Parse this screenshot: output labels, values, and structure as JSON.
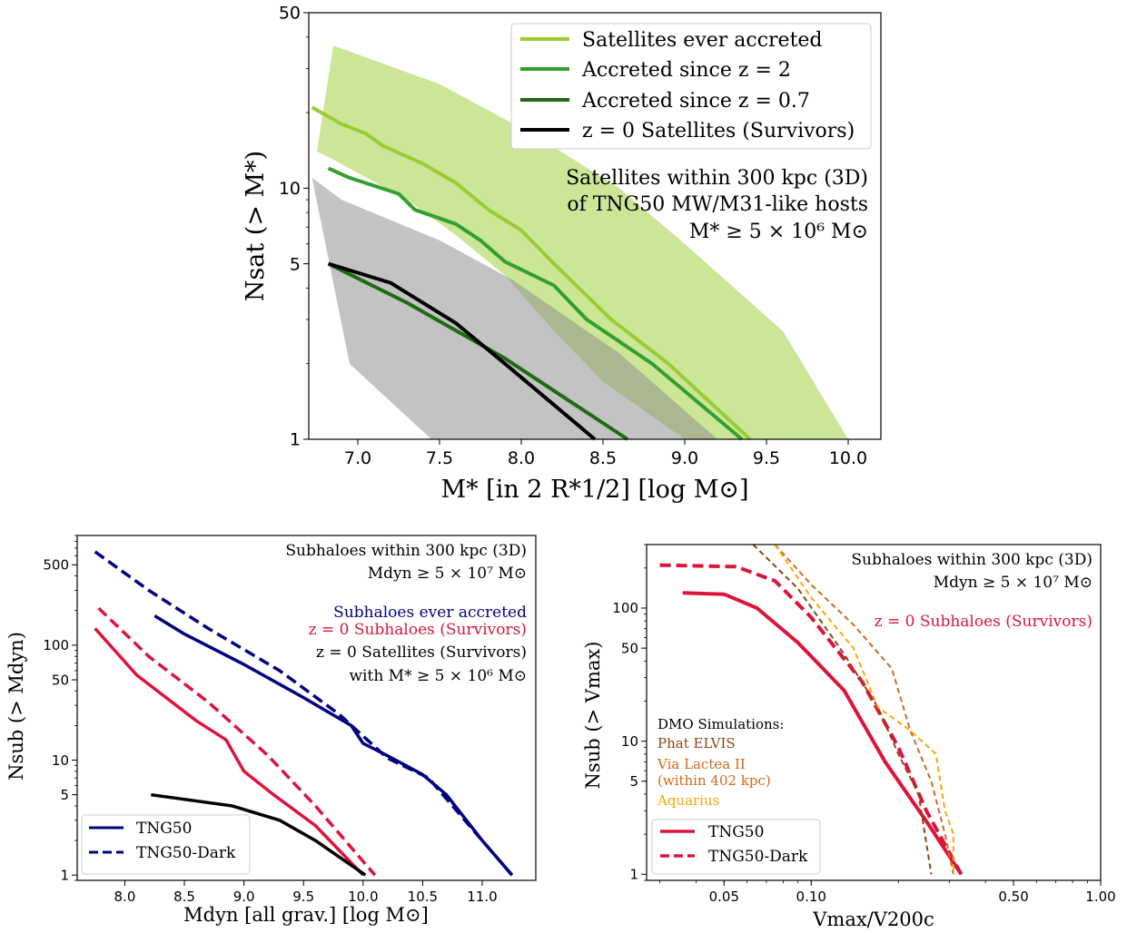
{
  "chart_data": [
    {
      "id": "top",
      "type": "line",
      "xscale": "linear",
      "yscale": "log",
      "xlim": [
        6.7,
        10.2
      ],
      "ylim": [
        1,
        50
      ],
      "xticks": [
        7.0,
        7.5,
        8.0,
        8.5,
        9.0,
        9.5,
        10.0
      ],
      "xtick_labels": [
        "7.0",
        "7.5",
        "8.0",
        "8.5",
        "9.0",
        "9.5",
        "10.0"
      ],
      "yticks": [
        1,
        5,
        10,
        50
      ],
      "ytick_labels": [
        "1",
        "5",
        "10",
        "50"
      ],
      "xlabel": "M* [in 2 R*1/2] [log M⊙]",
      "ylabel": "Nsat (> M*)",
      "legend_position": "top-right",
      "annotation": [
        "Satellites within 300 kpc (3D)",
        "of TNG50 MW/M31-like hosts",
        "M* ≥ 5 × 10⁶ M⊙"
      ],
      "bands": [
        {
          "color": "#9acd32",
          "opacity": 0.5,
          "upper": [
            [
              6.75,
              14
            ],
            [
              6.85,
              37
            ],
            [
              7.5,
              26
            ],
            [
              8.1,
              16
            ],
            [
              8.6,
              10
            ],
            [
              9.0,
              6
            ],
            [
              9.6,
              2.7
            ],
            [
              10.0,
              1
            ]
          ],
          "lower": [
            [
              9.55,
              1
            ],
            [
              9.0,
              1
            ],
            [
              8.5,
              1.7
            ],
            [
              8.2,
              2.7
            ],
            [
              7.9,
              4.5
            ],
            [
              7.6,
              6.5
            ],
            [
              7.3,
              9
            ],
            [
              6.85,
              13
            ],
            [
              6.75,
              14
            ]
          ]
        },
        {
          "color": "#888888",
          "opacity": 0.5,
          "upper": [
            [
              6.72,
              11
            ],
            [
              6.9,
              9
            ],
            [
              7.5,
              6.2
            ],
            [
              7.95,
              4.3
            ],
            [
              8.6,
              2.2
            ],
            [
              9.2,
              1
            ]
          ],
          "lower": [
            [
              7.45,
              1
            ],
            [
              6.95,
              2
            ],
            [
              6.72,
              11
            ]
          ]
        }
      ],
      "series": [
        {
          "name": "Satellites ever accreted",
          "color": "#9acd32",
          "width": 4,
          "points": [
            [
              6.72,
              21
            ],
            [
              6.9,
              18
            ],
            [
              7.05,
              16.5
            ],
            [
              7.15,
              14.8
            ],
            [
              7.4,
              12.5
            ],
            [
              7.6,
              10.5
            ],
            [
              7.8,
              8.2
            ],
            [
              8.0,
              6.8
            ],
            [
              8.2,
              5.0
            ],
            [
              8.55,
              3.0
            ],
            [
              8.9,
              2.0
            ],
            [
              9.4,
              1
            ]
          ]
        },
        {
          "name": "Accreted since z = 2",
          "color": "#33a02c",
          "width": 4,
          "points": [
            [
              6.82,
              12
            ],
            [
              6.95,
              11
            ],
            [
              7.25,
              9.5
            ],
            [
              7.35,
              8.2
            ],
            [
              7.6,
              7.2
            ],
            [
              7.75,
              6.2
            ],
            [
              7.9,
              5.1
            ],
            [
              8.2,
              4.1
            ],
            [
              8.4,
              3.0
            ],
            [
              8.8,
              2.0
            ],
            [
              9.35,
              1
            ]
          ]
        },
        {
          "name": "Accreted since z = 0.7",
          "color": "#1f6b14",
          "width": 4,
          "points": [
            [
              6.82,
              5.0
            ],
            [
              7.3,
              3.5
            ],
            [
              7.9,
              2.1
            ],
            [
              8.65,
              1
            ]
          ]
        },
        {
          "name": "z = 0 Satellites (Survivors)",
          "color": "#000000",
          "width": 4,
          "points": [
            [
              6.82,
              5.0
            ],
            [
              7.2,
              4.2
            ],
            [
              7.6,
              2.9
            ],
            [
              7.9,
              2.0
            ],
            [
              8.45,
              1
            ]
          ]
        }
      ]
    },
    {
      "id": "bottom-left",
      "type": "line",
      "xscale": "linear",
      "yscale": "log",
      "xlim": [
        7.6,
        11.45
      ],
      "ylim": [
        0.9,
        900
      ],
      "xticks": [
        8.0,
        8.5,
        9.0,
        9.5,
        10.0,
        10.5,
        11.0
      ],
      "xtick_labels": [
        "8.0",
        "8.5",
        "9.0",
        "9.5",
        "10.0",
        "10.5",
        "11.0"
      ],
      "yticks": [
        1,
        5,
        10,
        50,
        100,
        500
      ],
      "ytick_labels": [
        "1",
        "5",
        "10",
        "50",
        "100",
        "500"
      ],
      "xlabel": "Mdyn [all grav.] [log M⊙]",
      "ylabel": "Nsub (> Mdyn)",
      "legend_position": "bottom-left",
      "legend": [
        {
          "name": "TNG50",
          "style": "solid"
        },
        {
          "name": "TNG50-Dark",
          "style": "dashed"
        }
      ],
      "annotation": [
        "Subhaloes within 300 kpc (3D)",
        "Mdyn ≥ 5 × 10⁷ M⊙"
      ],
      "colored_labels": [
        {
          "text": "Subhaloes ever accreted",
          "color": "#00007f"
        },
        {
          "text": "z = 0 Subhaloes (Survivors)",
          "color": "#dc143c"
        },
        {
          "text": "z = 0 Satellites (Survivors)",
          "color": "#000000"
        },
        {
          "text": "with M* ≥ 5 × 10⁶ M⊙",
          "color": "#000000"
        }
      ],
      "series": [
        {
          "name": "Subhaloes ever accreted (TNG50-Dark)",
          "color": "#00007f",
          "dash": true,
          "points": [
            [
              7.75,
              650
            ],
            [
              8.2,
              300
            ],
            [
              8.7,
              140
            ],
            [
              9.3,
              60
            ],
            [
              9.8,
              25
            ],
            [
              10.2,
              10.5
            ],
            [
              10.55,
              7
            ],
            [
              11.0,
              2
            ],
            [
              11.25,
              1
            ]
          ]
        },
        {
          "name": "Subhaloes ever accreted (TNG50)",
          "color": "#00007f",
          "dash": false,
          "points": [
            [
              8.25,
              180
            ],
            [
              8.5,
              125
            ],
            [
              9.0,
              68
            ],
            [
              9.5,
              35
            ],
            [
              9.9,
              20
            ],
            [
              10.0,
              14
            ],
            [
              10.2,
              11
            ],
            [
              10.5,
              7.5
            ],
            [
              10.7,
              5
            ],
            [
              11.0,
              2.0
            ],
            [
              11.25,
              1
            ]
          ]
        },
        {
          "name": "z = 0 Subhaloes (TNG50-Dark)",
          "color": "#dc143c",
          "dash": true,
          "points": [
            [
              7.78,
              210
            ],
            [
              8.2,
              80
            ],
            [
              8.7,
              32
            ],
            [
              9.2,
              11
            ],
            [
              9.6,
              4
            ],
            [
              10.1,
              1
            ]
          ]
        },
        {
          "name": "z = 0 Subhaloes (TNG50)",
          "color": "#dc143c",
          "dash": false,
          "points": [
            [
              7.75,
              140
            ],
            [
              8.1,
              55
            ],
            [
              8.6,
              22
            ],
            [
              8.85,
              15
            ],
            [
              9.0,
              8
            ],
            [
              9.25,
              5
            ],
            [
              9.6,
              2.7
            ],
            [
              10.0,
              1
            ]
          ]
        },
        {
          "name": "z = 0 Satellites (TNG50)",
          "color": "#000000",
          "dash": false,
          "points": [
            [
              8.22,
              5.0
            ],
            [
              8.9,
              4.0
            ],
            [
              9.3,
              3.0
            ],
            [
              9.6,
              2.0
            ],
            [
              10.02,
              1
            ]
          ]
        }
      ]
    },
    {
      "id": "bottom-right",
      "type": "line",
      "xscale": "log",
      "yscale": "log",
      "xlim": [
        0.027,
        1.0
      ],
      "ylim": [
        0.9,
        300
      ],
      "xticks": [
        0.05,
        0.1,
        0.5,
        1.0
      ],
      "xtick_labels": [
        "0.05",
        "0.10",
        "0.50",
        "1.00"
      ],
      "yticks": [
        1,
        5,
        10,
        50,
        100
      ],
      "ytick_labels": [
        "1",
        "5",
        "10",
        "50",
        "100"
      ],
      "xlabel": "Vmax/V200c",
      "ylabel": "Nsub (> Vmax)",
      "legend_position": "bottom-left",
      "legend": [
        {
          "name": "TNG50",
          "style": "solid"
        },
        {
          "name": "TNG50-Dark",
          "style": "dashed"
        }
      ],
      "annotation": [
        "Subhaloes within 300 kpc (3D)",
        "Mdyn ≥ 5 × 10⁷ M⊙"
      ],
      "colored_labels": [
        {
          "text": "z = 0 Subhaloes (Survivors)",
          "color": "#dc143c"
        }
      ],
      "dmo_labels": [
        {
          "text": "DMO Simulations:",
          "color": "#000000"
        },
        {
          "text": "Phat ELVIS",
          "color": "#8b4513"
        },
        {
          "text": "Via Lactea II",
          "color": "#d2691e"
        },
        {
          "text": "(within 402 kpc)",
          "color": "#d2691e"
        },
        {
          "text": "Aquarius",
          "color": "#ffa500"
        }
      ],
      "series": [
        {
          "name": "TNG50-Dark",
          "color": "#dc143c",
          "dash": true,
          "width": 4,
          "points": [
            [
              0.03,
              210
            ],
            [
              0.055,
              205
            ],
            [
              0.075,
              160
            ],
            [
              0.1,
              85
            ],
            [
              0.15,
              28
            ],
            [
              0.2,
              9
            ],
            [
              0.25,
              3
            ],
            [
              0.33,
              1
            ]
          ]
        },
        {
          "name": "TNG50",
          "color": "#dc143c",
          "dash": false,
          "width": 4,
          "points": [
            [
              0.036,
              130
            ],
            [
              0.05,
              127
            ],
            [
              0.065,
              100
            ],
            [
              0.09,
              55
            ],
            [
              0.13,
              24
            ],
            [
              0.18,
              7
            ],
            [
              0.25,
              2.5
            ],
            [
              0.33,
              1
            ]
          ]
        },
        {
          "name": "Phat ELVIS",
          "color": "#8b4513",
          "dash": true,
          "width": 2,
          "points": [
            [
              0.063,
              300
            ],
            [
              0.09,
              140
            ],
            [
              0.13,
              45
            ],
            [
              0.17,
              18
            ],
            [
              0.2,
              8
            ],
            [
              0.235,
              4
            ],
            [
              0.26,
              1
            ]
          ]
        },
        {
          "name": "Via Lactea II",
          "color": "#d2691e",
          "dash": true,
          "width": 2,
          "points": [
            [
              0.075,
              300
            ],
            [
              0.1,
              150
            ],
            [
              0.14,
              75
            ],
            [
              0.19,
              35
            ],
            [
              0.22,
              12
            ],
            [
              0.26,
              5
            ],
            [
              0.29,
              2
            ],
            [
              0.31,
              1
            ]
          ]
        },
        {
          "name": "Aquarius",
          "color": "#ffa500",
          "dash": true,
          "width": 2,
          "points": [
            [
              0.075,
              300
            ],
            [
              0.1,
              120
            ],
            [
              0.14,
              50
            ],
            [
              0.17,
              18
            ],
            [
              0.22,
              12
            ],
            [
              0.27,
              8
            ],
            [
              0.29,
              3
            ],
            [
              0.31,
              2
            ],
            [
              0.31,
              1
            ]
          ]
        }
      ]
    }
  ]
}
